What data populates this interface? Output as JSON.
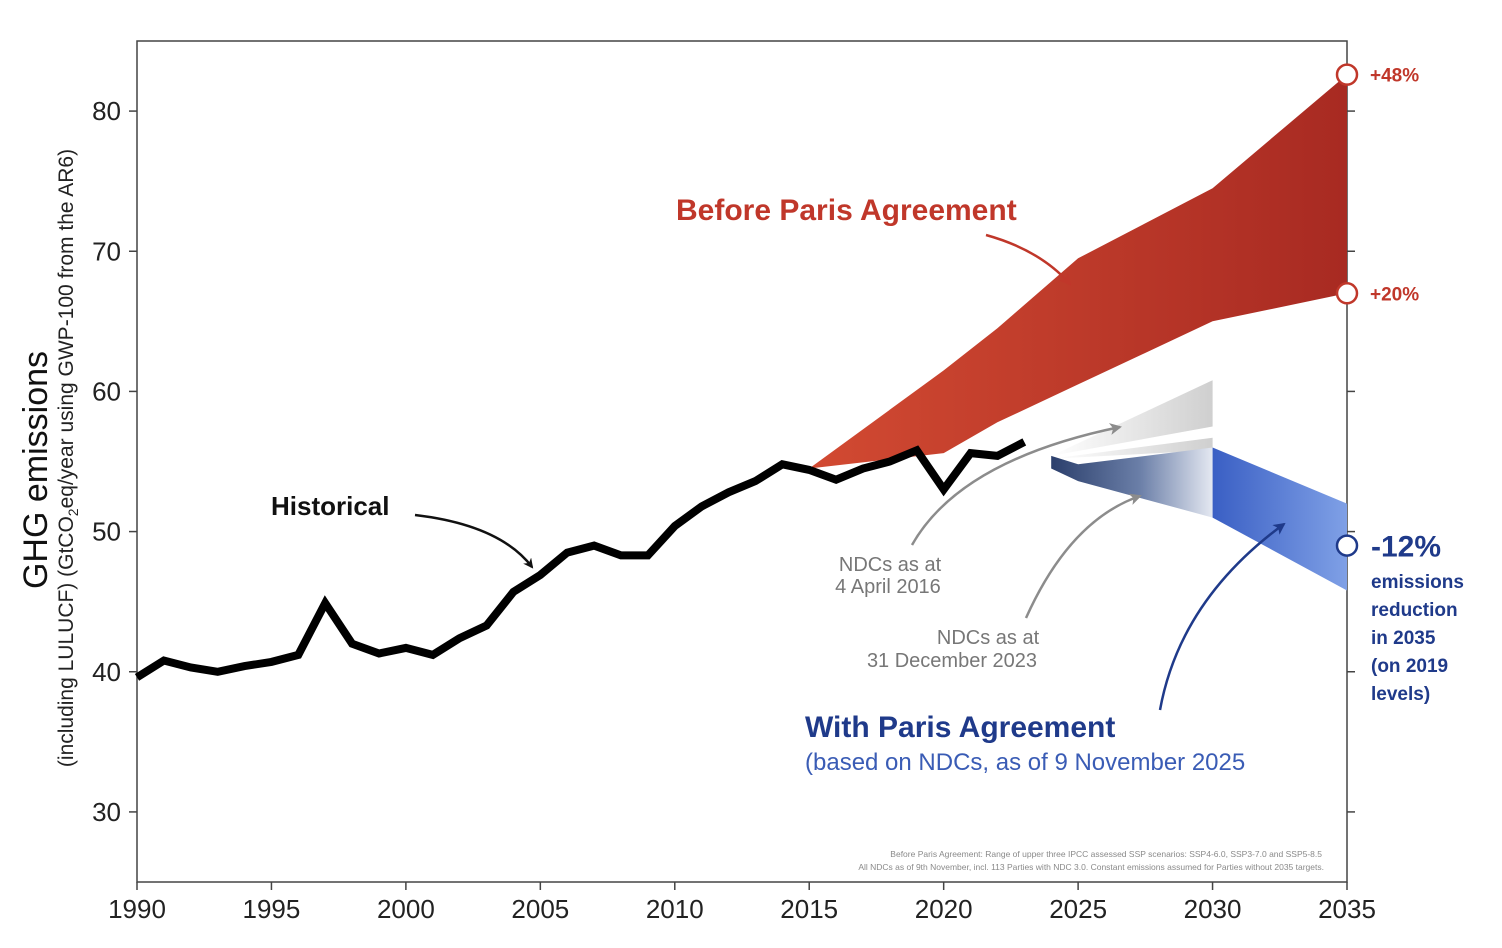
{
  "chart_data": {
    "type": "line",
    "ylabel": "GHG emissions",
    "ylabel_sub_pre": "(including LULUCF) (GtCO",
    "ylabel_sub_subscript": "2",
    "ylabel_sub_post": "eq/year using GWP-100 from the AR6)",
    "xlim": [
      1990,
      2035
    ],
    "ylim": [
      25,
      85
    ],
    "x_ticks": [
      1990,
      1995,
      2000,
      2005,
      2010,
      2015,
      2020,
      2025,
      2030,
      2035
    ],
    "y_ticks": [
      30,
      40,
      50,
      60,
      70,
      80
    ],
    "grid": false,
    "series": [
      {
        "name": "Historical",
        "x": [
          1990,
          1991,
          1992,
          1993,
          1994,
          1995,
          1996,
          1997,
          1998,
          1999,
          2000,
          2001,
          2002,
          2003,
          2004,
          2005,
          2006,
          2007,
          2008,
          2009,
          2010,
          2011,
          2012,
          2013,
          2014,
          2015,
          2016,
          2017,
          2018,
          2019,
          2020,
          2021,
          2022,
          2023
        ],
        "values": [
          39.6,
          40.8,
          40.3,
          40.0,
          40.4,
          40.7,
          41.2,
          44.9,
          42.0,
          41.3,
          41.7,
          41.2,
          42.4,
          43.3,
          45.7,
          46.9,
          48.5,
          49.0,
          48.3,
          48.3,
          50.4,
          51.8,
          52.8,
          53.6,
          54.8,
          54.4,
          53.7,
          54.5,
          55.0,
          55.8,
          53.0,
          55.6,
          55.4,
          56.4
        ],
        "color": "#000000"
      }
    ],
    "bands": [
      {
        "name": "Before Paris Agreement",
        "x": [
          2015,
          2020,
          2022,
          2025,
          2030,
          2035
        ],
        "upper": [
          54.5,
          61.5,
          64.5,
          69.5,
          74.5,
          82.6
        ],
        "lower": [
          54.5,
          55.6,
          57.8,
          60.5,
          65.0,
          67.0
        ],
        "color": "#c0372a"
      },
      {
        "name": "With Paris Agreement",
        "x": [
          2024,
          2025,
          2030,
          2035
        ],
        "upper": [
          55.4,
          54.8,
          56.0,
          52.0
        ],
        "lower": [
          54.5,
          53.6,
          51.0,
          45.8
        ],
        "color": "#3c5fb8"
      },
      {
        "name": "NDCs as at 4 April 2016",
        "x": [
          2024,
          2030
        ],
        "upper": [
          55.4,
          60.8
        ],
        "lower": [
          55.4,
          57.5
        ],
        "color": "#c8c8c8"
      },
      {
        "name": "NDCs as at 31 December 2023",
        "x": [
          2024,
          2030
        ],
        "upper": [
          55.2,
          56.7
        ],
        "lower": [
          55.2,
          55.8
        ],
        "color": "#c8c8c8"
      }
    ],
    "markers": [
      {
        "label": "+48%",
        "x": 2035,
        "y": 82.6,
        "color": "#c0372a"
      },
      {
        "label": "+20%",
        "x": 2035,
        "y": 67.0,
        "color": "#c0372a"
      },
      {
        "label": "-12%",
        "x": 2035,
        "y": 49.0,
        "color": "#1f3a8a"
      }
    ],
    "annotations": {
      "historical": "Historical",
      "before_paris": "Before Paris Agreement",
      "with_paris": "With Paris Agreement",
      "with_paris_sub": "(based on NDCs, as of 9 November 2025",
      "ndc_2016_line1": "NDCs as at",
      "ndc_2016_line2": "4 April 2016",
      "ndc_2023_line1": "NDCs as at",
      "ndc_2023_line2": "31 December 2023",
      "reduction_lines": [
        "emissions",
        "reduction",
        "in 2035",
        "(on 2019",
        "levels)"
      ],
      "footnote_line1": "Before Paris Agreement: Range of upper three IPCC assessed SSP scenarios: SSP4-6.0, SSP3-7.0 and SSP5-8.5",
      "footnote_line2": "All NDCs as of 9th November, incl. 113 Parties with NDC 3.0. Constant emissions assumed for Parties without 2035 targets."
    },
    "colors": {
      "historical": "#000000",
      "before": "#c0372a",
      "before_dark": "#a82a20",
      "with": "#3c5fb8",
      "with_text": "#1f3a8a",
      "with_sub_text": "#3a5cb5",
      "ndc_grey": "#8c8c8c"
    }
  }
}
